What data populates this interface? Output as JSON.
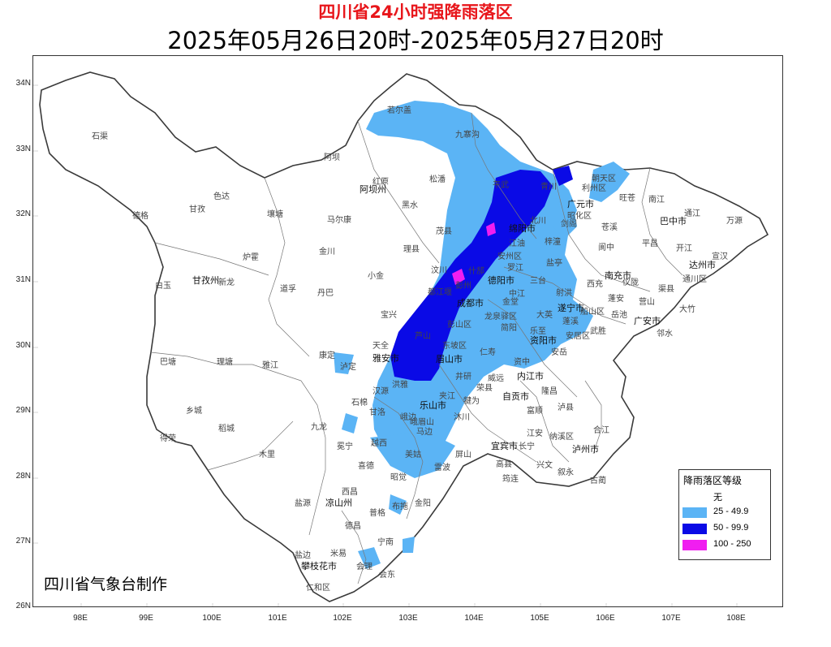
{
  "title": "四川省24小时强降雨落区",
  "subtitle": "2025年05月26日20时-2025年05月27日20时",
  "credit": "四川省气象台制作",
  "axes": {
    "lat_ticks": [
      "34N",
      "33N",
      "32N",
      "31N",
      "30N",
      "29N",
      "28N",
      "27N",
      "26N"
    ],
    "lon_ticks": [
      "98E",
      "99E",
      "100E",
      "101E",
      "102E",
      "103E",
      "104E",
      "105E",
      "106E",
      "107E",
      "108E"
    ]
  },
  "legend": {
    "title": "降雨落区等级",
    "items": [
      {
        "label": "无",
        "color": "#ffffff"
      },
      {
        "label": "25 - 49.9",
        "color": "#5bb4f5"
      },
      {
        "label": "50 - 99.9",
        "color": "#0a0ae6"
      },
      {
        "label": "100 - 250",
        "color": "#f01ef0"
      }
    ]
  },
  "places": [
    {
      "name": "若尔盖",
      "major": false
    },
    {
      "name": "石渠",
      "major": false
    },
    {
      "name": "九寨沟",
      "major": false
    },
    {
      "name": "阿坝",
      "major": false
    },
    {
      "name": "红原",
      "major": false
    },
    {
      "name": "松潘",
      "major": false
    },
    {
      "name": "阿坝州",
      "major": true
    },
    {
      "name": "德格",
      "major": false
    },
    {
      "name": "色达",
      "major": false
    },
    {
      "name": "甘孜",
      "major": false
    },
    {
      "name": "壤塘",
      "major": false
    },
    {
      "name": "马尔康",
      "major": false
    },
    {
      "name": "黑水",
      "major": false
    },
    {
      "name": "平武",
      "major": false
    },
    {
      "name": "青川",
      "major": false
    },
    {
      "name": "朝天区",
      "major": false
    },
    {
      "name": "旺苍",
      "major": false
    },
    {
      "name": "南江",
      "major": false
    },
    {
      "name": "通江",
      "major": false
    },
    {
      "name": "万源",
      "major": false
    },
    {
      "name": "广元市",
      "major": true
    },
    {
      "name": "剑阁",
      "major": false
    },
    {
      "name": "苍溪",
      "major": false
    },
    {
      "name": "巴中市",
      "major": true
    },
    {
      "name": "北川",
      "major": false
    },
    {
      "name": "茂县",
      "major": false
    },
    {
      "name": "理县",
      "major": false
    },
    {
      "name": "金川",
      "major": false
    },
    {
      "name": "炉霍",
      "major": false
    },
    {
      "name": "白玉",
      "major": false
    },
    {
      "name": "甘孜州",
      "major": true
    },
    {
      "name": "新龙",
      "major": false
    },
    {
      "name": "道孚",
      "major": false
    },
    {
      "name": "丹巴",
      "major": false
    },
    {
      "name": "小金",
      "major": false
    },
    {
      "name": "汶川",
      "major": false
    },
    {
      "name": "绵阳市",
      "major": true
    },
    {
      "name": "梓潼",
      "major": false
    },
    {
      "name": "阆中",
      "major": false
    },
    {
      "name": "仪陇",
      "major": false
    },
    {
      "name": "平昌",
      "major": false
    },
    {
      "name": "达州市",
      "major": true
    },
    {
      "name": "宣汉",
      "major": false
    },
    {
      "name": "开江",
      "major": false
    },
    {
      "name": "大竹",
      "major": false
    },
    {
      "name": "渠县",
      "major": false
    },
    {
      "name": "南充市",
      "major": true
    },
    {
      "name": "盐亭",
      "major": false
    },
    {
      "name": "三台",
      "major": false
    },
    {
      "name": "德阳市",
      "major": true
    },
    {
      "name": "射洪",
      "major": false
    },
    {
      "name": "西充",
      "major": false
    },
    {
      "name": "蓬安",
      "major": false
    },
    {
      "name": "营山",
      "major": false
    },
    {
      "name": "广安市",
      "major": true
    },
    {
      "name": "邻水",
      "major": false
    },
    {
      "name": "岳池",
      "major": false
    },
    {
      "name": "武胜",
      "major": false
    },
    {
      "name": "遂宁市",
      "major": true
    },
    {
      "name": "蓬溪",
      "major": false
    },
    {
      "name": "大英",
      "major": false
    },
    {
      "name": "成都市",
      "major": true
    },
    {
      "name": "金堂",
      "major": false
    },
    {
      "name": "简阳",
      "major": false
    },
    {
      "name": "乐至",
      "major": false
    },
    {
      "name": "安岳",
      "major": false
    },
    {
      "name": "资阳市",
      "major": true
    },
    {
      "name": "雅安市",
      "major": true
    },
    {
      "name": "宝兴",
      "major": false
    },
    {
      "name": "天全",
      "major": false
    },
    {
      "name": "芦山",
      "major": false
    },
    {
      "name": "眉山市",
      "major": true
    },
    {
      "name": "彭山区",
      "major": false
    },
    {
      "name": "东坡区",
      "major": false
    },
    {
      "name": "仁寿",
      "major": false
    },
    {
      "name": "井研",
      "major": false
    },
    {
      "name": "内江市",
      "major": true
    },
    {
      "name": "资中",
      "major": false
    },
    {
      "name": "隆昌",
      "major": false
    },
    {
      "name": "自贡市",
      "major": true
    },
    {
      "name": "荣县",
      "major": false
    },
    {
      "name": "富顺",
      "major": false
    },
    {
      "name": "泸县",
      "major": false
    },
    {
      "name": "泸州市",
      "major": true
    },
    {
      "name": "合江",
      "major": false
    },
    {
      "name": "纳溪区",
      "major": false
    },
    {
      "name": "叙永",
      "major": false
    },
    {
      "name": "古蔺",
      "major": false
    },
    {
      "name": "宜宾市",
      "major": true
    },
    {
      "name": "长宁",
      "major": false
    },
    {
      "name": "江安",
      "major": false
    },
    {
      "name": "兴文",
      "major": false
    },
    {
      "name": "筠连",
      "major": false
    },
    {
      "name": "高县",
      "major": false
    },
    {
      "name": "屏山",
      "major": false
    },
    {
      "name": "乐山市",
      "major": true
    },
    {
      "name": "沐川",
      "major": false
    },
    {
      "name": "犍为",
      "major": false
    },
    {
      "name": "峨边",
      "major": false
    },
    {
      "name": "马边",
      "major": false
    },
    {
      "name": "雷波",
      "major": false
    },
    {
      "name": "美姑",
      "major": false
    },
    {
      "name": "昭觉",
      "major": false
    },
    {
      "name": "金阳",
      "major": false
    },
    {
      "name": "布拖",
      "major": false
    },
    {
      "name": "普格",
      "major": false
    },
    {
      "name": "宁南",
      "major": false
    },
    {
      "name": "会东",
      "major": false
    },
    {
      "name": "会理",
      "major": false
    },
    {
      "name": "德昌",
      "major": false
    },
    {
      "name": "凉山州",
      "major": true
    },
    {
      "name": "西昌",
      "major": false
    },
    {
      "name": "喜德",
      "major": false
    },
    {
      "name": "越西",
      "major": false
    },
    {
      "name": "甘洛",
      "major": false
    },
    {
      "name": "汉源",
      "major": false
    },
    {
      "name": "石棉",
      "major": false
    },
    {
      "name": "冕宁",
      "major": false
    },
    {
      "name": "盐源",
      "major": false
    },
    {
      "name": "木里",
      "major": false
    },
    {
      "name": "九龙",
      "major": false
    },
    {
      "name": "泸定",
      "major": false
    },
    {
      "name": "康定",
      "major": false
    },
    {
      "name": "雅江",
      "major": false
    },
    {
      "name": "理塘",
      "major": false
    },
    {
      "name": "巴塘",
      "major": false
    },
    {
      "name": "乡城",
      "major": false
    },
    {
      "name": "稻城",
      "major": false
    },
    {
      "name": "得荣",
      "major": false
    },
    {
      "name": "米易",
      "major": false
    },
    {
      "name": "攀枝花市",
      "major": true
    },
    {
      "name": "盐边",
      "major": false
    },
    {
      "name": "仁和区",
      "major": false
    },
    {
      "name": "洪雅",
      "major": false
    },
    {
      "name": "夹江",
      "major": false
    },
    {
      "name": "昭化区",
      "major": false
    },
    {
      "name": "利州区",
      "major": false
    },
    {
      "name": "通川区",
      "major": false
    },
    {
      "name": "中江",
      "major": false
    },
    {
      "name": "罗江",
      "major": false
    },
    {
      "name": "安州区",
      "major": false
    },
    {
      "name": "江油",
      "major": false
    },
    {
      "name": "什邡",
      "major": false
    },
    {
      "name": "彭州",
      "major": false
    },
    {
      "name": "都江堰",
      "major": false
    },
    {
      "name": "龙泉驿区",
      "major": false
    },
    {
      "name": "峨眉山",
      "major": false
    },
    {
      "name": "威远",
      "major": false
    },
    {
      "name": "安居区",
      "major": false
    },
    {
      "name": "船山区",
      "major": false
    }
  ]
}
